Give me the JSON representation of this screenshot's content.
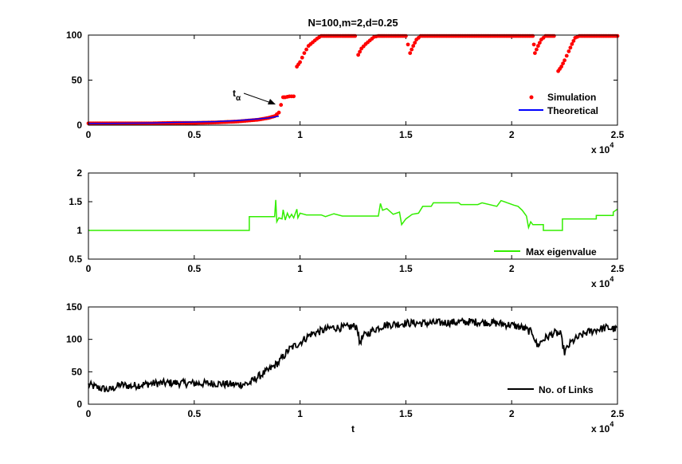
{
  "chart_data": [
    {
      "type": "scatter",
      "title": "N=100,m=2,d=0.25",
      "xlabel": "",
      "ylabel": "",
      "xlim": [
        0,
        25000
      ],
      "ylim": [
        0,
        100
      ],
      "xticks": [
        0,
        5000,
        10000,
        15000,
        20000,
        25000
      ],
      "xtick_labels": [
        "0",
        "0.5",
        "1",
        "1.5",
        "2",
        "2.5"
      ],
      "yticks": [
        0,
        50,
        100
      ],
      "ytick_labels": [
        "0",
        "50",
        "100"
      ],
      "x_multiplier_base": "x 10",
      "x_multiplier_exp": "4",
      "grid": false,
      "legend_position": "bottom-right",
      "annotation": {
        "text_main": "t",
        "text_sub": "α",
        "arrow_to": [
          9050,
          12
        ]
      },
      "series": [
        {
          "name": "Simulation",
          "style": "markers",
          "color": "#ff0000",
          "points": [
            [
              0,
              2
            ],
            [
              1000,
              2
            ],
            [
              2000,
              2
            ],
            [
              3000,
              2
            ],
            [
              4000,
              2.5
            ],
            [
              5000,
              2.5
            ],
            [
              6000,
              3
            ],
            [
              6500,
              3.5
            ],
            [
              7000,
              4
            ],
            [
              7500,
              5
            ],
            [
              8000,
              6
            ],
            [
              8500,
              8
            ],
            [
              8800,
              10
            ],
            [
              9000,
              14
            ],
            [
              9200,
              31
            ],
            [
              9300,
              31
            ],
            [
              9500,
              32
            ],
            [
              9700,
              32
            ],
            [
              9850,
              65
            ],
            [
              10000,
              70
            ],
            [
              10200,
              80
            ],
            [
              10400,
              88
            ],
            [
              10600,
              92
            ],
            [
              10800,
              96
            ],
            [
              11000,
              99
            ],
            [
              12000,
              99
            ],
            [
              12300,
              99
            ],
            [
              12600,
              99
            ],
            [
              12750,
              78
            ],
            [
              12900,
              85
            ],
            [
              13100,
              90
            ],
            [
              13300,
              94
            ],
            [
              13500,
              98
            ],
            [
              13700,
              99
            ],
            [
              14000,
              99
            ],
            [
              15000,
              99
            ],
            [
              15200,
              80
            ],
            [
              15350,
              88
            ],
            [
              15500,
              95
            ],
            [
              15700,
              99
            ],
            [
              17000,
              99
            ],
            [
              18000,
              99
            ],
            [
              19000,
              99
            ],
            [
              20000,
              99
            ],
            [
              21000,
              99
            ],
            [
              21100,
              80
            ],
            [
              21250,
              88
            ],
            [
              21400,
              95
            ],
            [
              21600,
              99
            ],
            [
              22000,
              99
            ],
            [
              22200,
              60
            ],
            [
              22350,
              65
            ],
            [
              22500,
              72
            ],
            [
              22700,
              82
            ],
            [
              22850,
              90
            ],
            [
              23000,
              97
            ],
            [
              23200,
              99
            ],
            [
              24000,
              99
            ],
            [
              24500,
              99
            ],
            [
              25000,
              99
            ]
          ]
        },
        {
          "name": "Theoretical",
          "style": "line",
          "color": "#0000ff",
          "points": [
            [
              0,
              2
            ],
            [
              1000,
              2
            ],
            [
              2000,
              2.2
            ],
            [
              3000,
              2.5
            ],
            [
              4000,
              3
            ],
            [
              5000,
              3.5
            ],
            [
              6000,
              4
            ],
            [
              7000,
              5
            ],
            [
              7500,
              6
            ],
            [
              8000,
              7
            ],
            [
              8500,
              8
            ],
            [
              9000,
              10
            ]
          ]
        }
      ]
    },
    {
      "type": "line",
      "title": "",
      "xlabel": "",
      "ylabel": "",
      "xlim": [
        0,
        25000
      ],
      "ylim": [
        0.5,
        2
      ],
      "xticks": [
        0,
        5000,
        10000,
        15000,
        20000,
        25000
      ],
      "xtick_labels": [
        "0",
        "0.5",
        "1",
        "1.5",
        "2",
        "2.5"
      ],
      "yticks": [
        0.5,
        1,
        1.5,
        2
      ],
      "ytick_labels": [
        "0.5",
        "1",
        "1.5",
        "2"
      ],
      "x_multiplier_base": "x 10",
      "x_multiplier_exp": "4",
      "grid": false,
      "legend_position": "bottom-right",
      "series": [
        {
          "name": "Max eigenvalue",
          "style": "step",
          "color": "#33ee00",
          "points": [
            [
              0,
              1
            ],
            [
              7600,
              1
            ],
            [
              7600,
              1.24
            ],
            [
              8800,
              1.24
            ],
            [
              8850,
              1.53
            ],
            [
              8900,
              1.15
            ],
            [
              9000,
              1.22
            ],
            [
              9150,
              1.2
            ],
            [
              9200,
              1.36
            ],
            [
              9300,
              1.18
            ],
            [
              9400,
              1.3
            ],
            [
              9500,
              1.22
            ],
            [
              9600,
              1.28
            ],
            [
              9700,
              1.22
            ],
            [
              9850,
              1.37
            ],
            [
              9900,
              1.22
            ],
            [
              10000,
              1.3
            ],
            [
              10300,
              1.27
            ],
            [
              11000,
              1.27
            ],
            [
              11200,
              1.24
            ],
            [
              11600,
              1.29
            ],
            [
              12000,
              1.25
            ],
            [
              13000,
              1.25
            ],
            [
              13700,
              1.25
            ],
            [
              13800,
              1.47
            ],
            [
              13900,
              1.35
            ],
            [
              14100,
              1.38
            ],
            [
              14400,
              1.28
            ],
            [
              14700,
              1.32
            ],
            [
              14800,
              1.1
            ],
            [
              15000,
              1.2
            ],
            [
              15300,
              1.28
            ],
            [
              15600,
              1.3
            ],
            [
              15800,
              1.42
            ],
            [
              16200,
              1.42
            ],
            [
              16300,
              1.48
            ],
            [
              17500,
              1.48
            ],
            [
              17600,
              1.45
            ],
            [
              18400,
              1.45
            ],
            [
              18600,
              1.48
            ],
            [
              19300,
              1.42
            ],
            [
              19500,
              1.52
            ],
            [
              19800,
              1.48
            ],
            [
              20100,
              1.44
            ],
            [
              20300,
              1.42
            ],
            [
              20500,
              1.35
            ],
            [
              20700,
              1.25
            ],
            [
              20800,
              1.05
            ],
            [
              20900,
              1.15
            ],
            [
              21000,
              1.1
            ],
            [
              21500,
              1.1
            ],
            [
              21500,
              1.0
            ],
            [
              22400,
              1.0
            ],
            [
              22400,
              1.2
            ],
            [
              24000,
              1.2
            ],
            [
              24000,
              1.26
            ],
            [
              24800,
              1.26
            ],
            [
              24800,
              1.32
            ],
            [
              25000,
              1.37
            ]
          ]
        }
      ]
    },
    {
      "type": "line",
      "title": "",
      "xlabel": "t",
      "ylabel": "",
      "xlim": [
        0,
        25000
      ],
      "ylim": [
        0,
        150
      ],
      "xticks": [
        0,
        5000,
        10000,
        15000,
        20000,
        25000
      ],
      "xtick_labels": [
        "0",
        "0.5",
        "1",
        "1.5",
        "2",
        "2.5"
      ],
      "yticks": [
        0,
        50,
        100,
        150
      ],
      "ytick_labels": [
        "0",
        "50",
        "100",
        "150"
      ],
      "x_multiplier_base": "x 10",
      "x_multiplier_exp": "4",
      "grid": false,
      "legend_position": "bottom-right",
      "series": [
        {
          "name": "No. of Links",
          "style": "noisy-line",
          "color": "#000000",
          "points": [
            [
              0,
              30
            ],
            [
              500,
              25
            ],
            [
              1000,
              22
            ],
            [
              1500,
              30
            ],
            [
              2000,
              28
            ],
            [
              3000,
              32
            ],
            [
              4000,
              33
            ],
            [
              5000,
              32
            ],
            [
              6000,
              32
            ],
            [
              7000,
              30
            ],
            [
              7600,
              32
            ],
            [
              8000,
              42
            ],
            [
              8500,
              52
            ],
            [
              9000,
              65
            ],
            [
              9500,
              85
            ],
            [
              10000,
              95
            ],
            [
              10500,
              108
            ],
            [
              11000,
              113
            ],
            [
              11500,
              118
            ],
            [
              12000,
              118
            ],
            [
              12500,
              120
            ],
            [
              12700,
              120
            ],
            [
              12800,
              95
            ],
            [
              13000,
              105
            ],
            [
              13500,
              115
            ],
            [
              14000,
              122
            ],
            [
              15000,
              125
            ],
            [
              16000,
              125
            ],
            [
              17000,
              126
            ],
            [
              18000,
              127
            ],
            [
              19000,
              126
            ],
            [
              20000,
              122
            ],
            [
              20500,
              118
            ],
            [
              21000,
              110
            ],
            [
              21200,
              90
            ],
            [
              21500,
              100
            ],
            [
              22000,
              110
            ],
            [
              22300,
              108
            ],
            [
              22500,
              80
            ],
            [
              22800,
              95
            ],
            [
              23000,
              100
            ],
            [
              23500,
              110
            ],
            [
              24000,
              115
            ],
            [
              24500,
              118
            ],
            [
              25000,
              115
            ]
          ]
        }
      ]
    }
  ]
}
